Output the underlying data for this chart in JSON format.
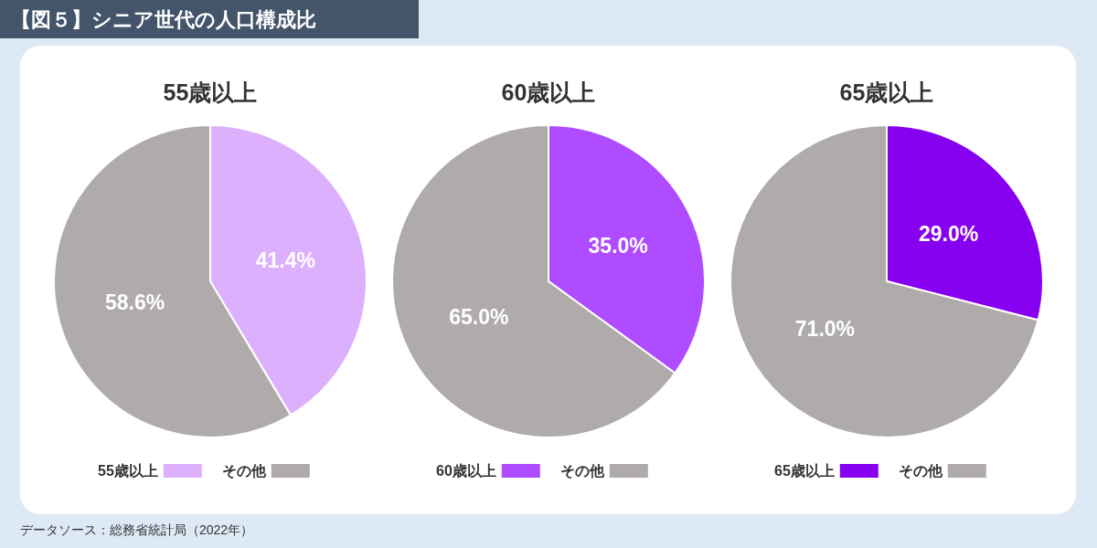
{
  "chart_data": [
    {
      "type": "pie",
      "title": "55歳以上",
      "categories": [
        "55歳以上",
        "その他"
      ],
      "values": [
        41.4,
        58.6
      ],
      "colors": [
        "#dcb0fc",
        "#b0abab"
      ],
      "value_labels": [
        "41.4%",
        "58.6%"
      ],
      "legend": "bottom",
      "annotations": [
        "【図５】シニア世代の人口構成比",
        "データソース：総務省統計局（2022年）"
      ]
    },
    {
      "type": "pie",
      "title": "60歳以上",
      "categories": [
        "60歳以上",
        "その他"
      ],
      "values": [
        35.0,
        65.0
      ],
      "colors": [
        "#b04cff",
        "#b0abab"
      ],
      "value_labels": [
        "35.0%",
        "65.0%"
      ],
      "legend": "bottom"
    },
    {
      "type": "pie",
      "title": "65歳以上",
      "categories": [
        "65歳以上",
        "その他"
      ],
      "values": [
        29.0,
        71.0
      ],
      "colors": [
        "#8800f0",
        "#b0abab"
      ],
      "value_labels": [
        "29.0%",
        "71.0%"
      ],
      "legend": "bottom"
    }
  ]
}
